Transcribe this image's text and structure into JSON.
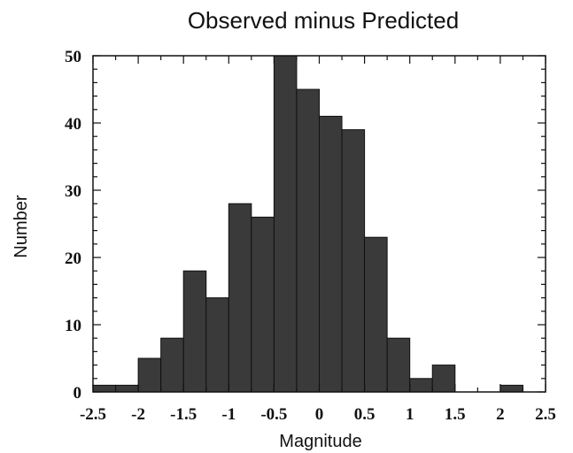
{
  "chart_data": {
    "type": "bar",
    "title": "Observed minus Predicted",
    "xlabel": "Magnitude",
    "ylabel": "Number",
    "bin_edges": [
      -2.5,
      -2.25,
      -2.0,
      -1.75,
      -1.5,
      -1.25,
      -1.0,
      -0.75,
      -0.5,
      -0.25,
      0.0,
      0.25,
      0.5,
      0.75,
      1.0,
      1.25,
      1.5,
      1.75,
      2.0,
      2.25,
      2.5
    ],
    "values": [
      1,
      1,
      5,
      8,
      18,
      14,
      28,
      26,
      50,
      45,
      41,
      39,
      23,
      8,
      2,
      4,
      0,
      0,
      1,
      0
    ],
    "xlim": [
      -2.5,
      2.5
    ],
    "ylim": [
      0,
      50
    ],
    "xticks": [
      "-2.5",
      "-2",
      "-1.5",
      "-1",
      "-0.5",
      "0",
      "0.5",
      "1",
      "1.5",
      "2",
      "2.5"
    ],
    "xtick_values": [
      -2.5,
      -2,
      -1.5,
      -1,
      -0.5,
      0,
      0.5,
      1,
      1.5,
      2,
      2.5
    ],
    "yticks": [
      "0",
      "10",
      "20",
      "30",
      "40",
      "50"
    ],
    "ytick_values": [
      0,
      10,
      20,
      30,
      40,
      50
    ],
    "bar_color": "#3a3a3a",
    "grid": false,
    "legend": "none"
  }
}
